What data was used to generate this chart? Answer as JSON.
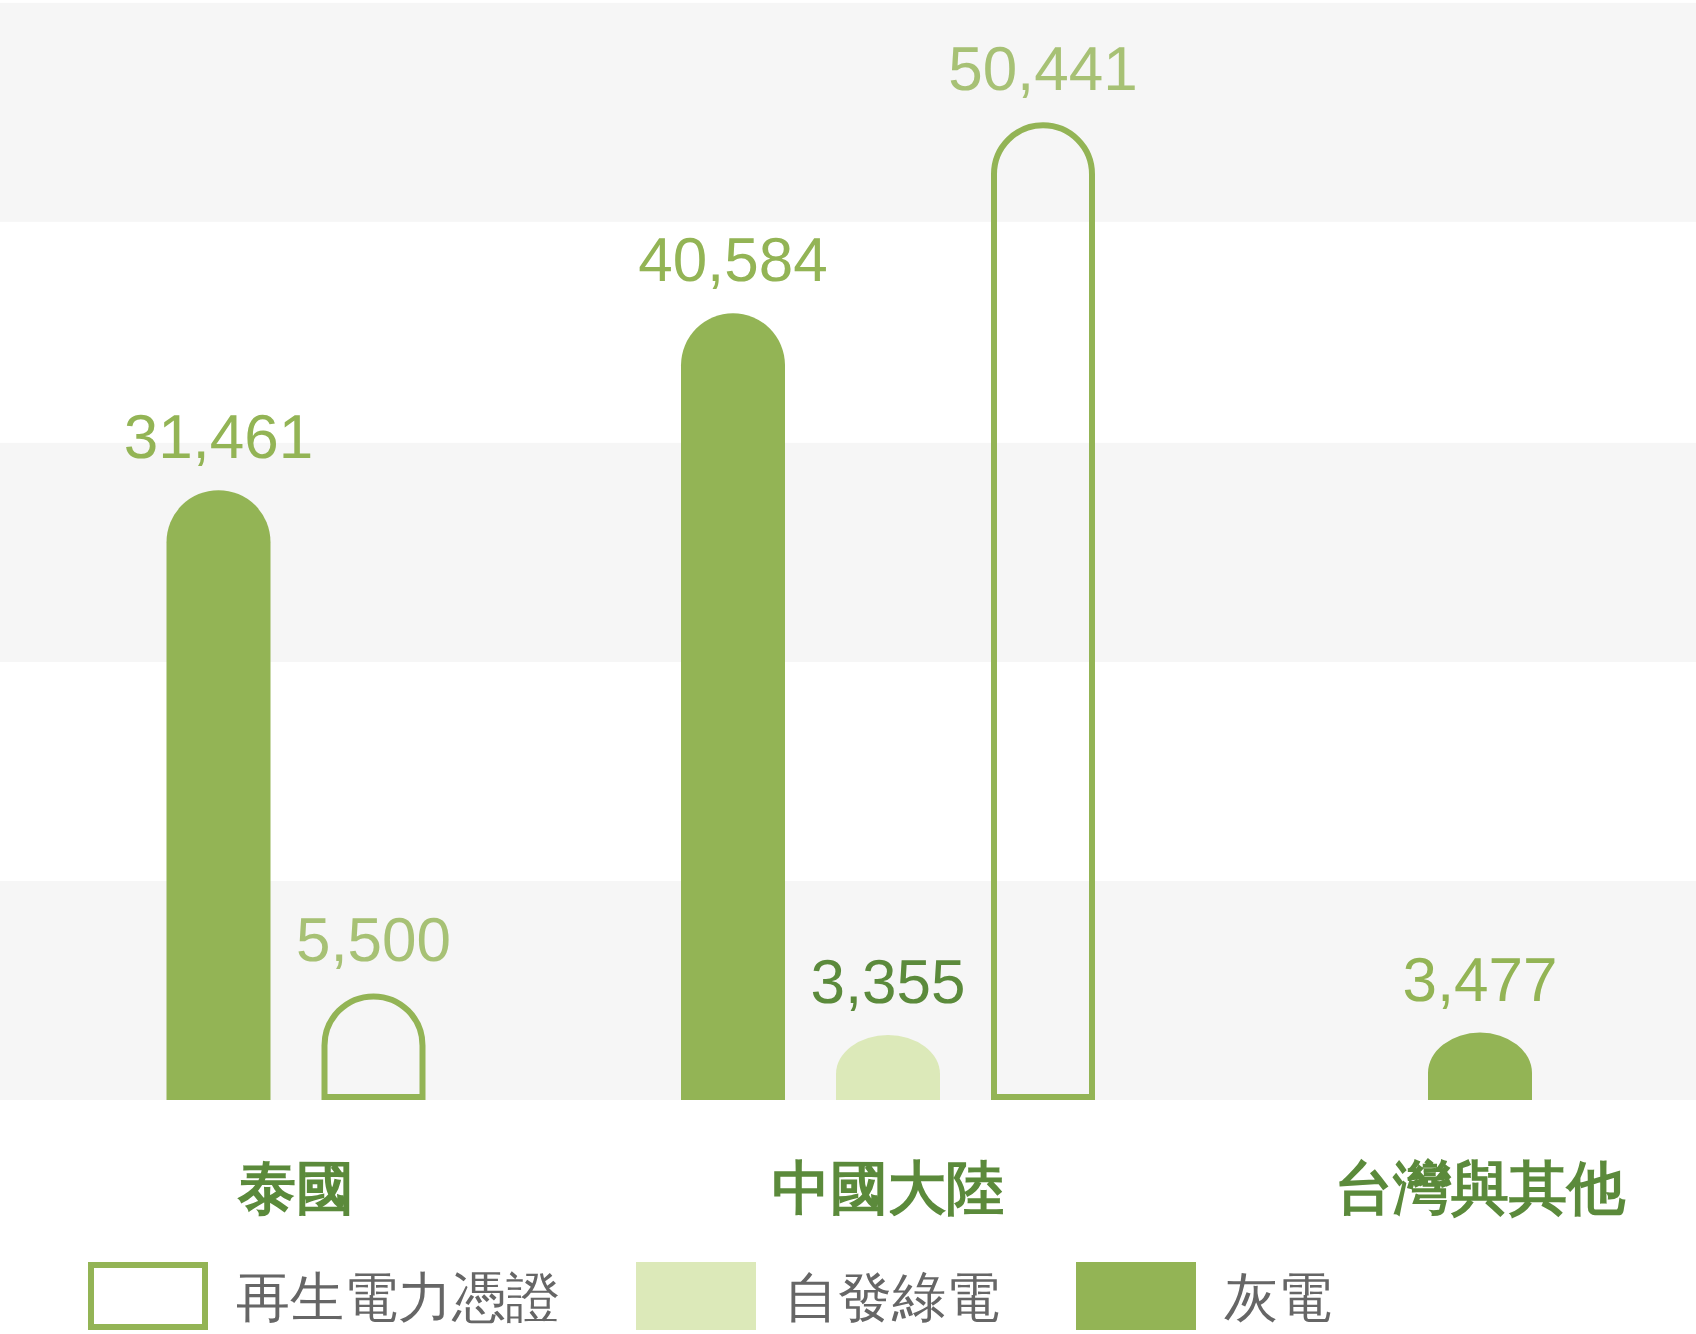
{
  "chart_data": {
    "type": "bar",
    "categories": [
      "泰國",
      "中國大陸",
      "台灣與其他"
    ],
    "series": [
      {
        "name": "灰電",
        "color": "#93b455",
        "values": [
          31461,
          40584,
          3477
        ],
        "value_labels": [
          "31,461",
          "40,584",
          "3,477"
        ]
      },
      {
        "name": "自發綠電",
        "color": "#dce9b9",
        "values": [
          null,
          3355,
          null
        ],
        "value_labels": [
          null,
          "3,355",
          null
        ]
      },
      {
        "name": "再生電力憑證",
        "color": "#93b455",
        "values": [
          5500,
          50441,
          null
        ],
        "value_labels": [
          "5,500",
          "50,441",
          null
        ]
      }
    ],
    "bands": [
      {
        "axis": "y",
        "from": 0,
        "to": 11300,
        "color": "#f6f6f6"
      },
      {
        "axis": "y",
        "from": 22600,
        "to": 33900,
        "color": "#f6f6f6"
      },
      {
        "axis": "y",
        "from": 45300,
        "to": 56600,
        "color": "#f6f6f6"
      }
    ],
    "legend": "bottom"
  }
}
